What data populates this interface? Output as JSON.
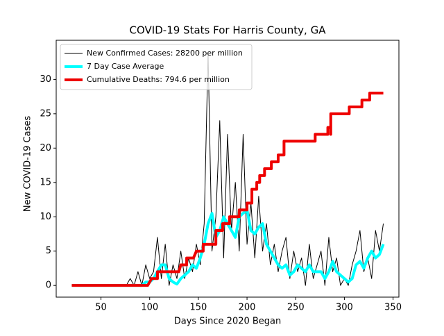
{
  "chart_data": {
    "type": "line",
    "title": "COVID-19 Stats For Harris County, GA",
    "x_label": "Days Since 2020 Began",
    "y_label": "New COVID-19 Cases",
    "xlim": [
      4,
      356
    ],
    "xticks": [
      50,
      100,
      150,
      200,
      250,
      300,
      350
    ],
    "ylim": [
      -1.7,
      35.7
    ],
    "yticks": [
      0,
      5,
      10,
      15,
      20,
      25,
      30
    ],
    "legend": "upper left",
    "series": [
      {
        "name": "New Confirmed Cases: 28200 per million",
        "color": "#000000",
        "width": 1,
        "x": [
          20,
          24,
          28,
          32,
          36,
          40,
          44,
          48,
          52,
          56,
          60,
          64,
          68,
          72,
          76,
          80,
          84,
          88,
          92,
          96,
          100,
          104,
          108,
          112,
          116,
          120,
          124,
          128,
          132,
          136,
          140,
          144,
          148,
          152,
          156,
          160,
          164,
          168,
          172,
          176,
          180,
          184,
          188,
          192,
          196,
          200,
          204,
          208,
          212,
          216,
          220,
          224,
          228,
          232,
          236,
          240,
          244,
          248,
          252,
          256,
          260,
          264,
          268,
          272,
          276,
          280,
          284,
          288,
          292,
          296,
          300,
          304,
          308,
          312,
          316,
          320,
          324,
          328,
          332,
          336,
          340
        ],
        "values": [
          0,
          0,
          0,
          0,
          0,
          0,
          0,
          0,
          0,
          0,
          0,
          0,
          0,
          0,
          0,
          1,
          0,
          2,
          0,
          3,
          1,
          2,
          7,
          1,
          6,
          0,
          3,
          1,
          5,
          1,
          4,
          2,
          6,
          3,
          9,
          34,
          5,
          10,
          24,
          4,
          22,
          8,
          15,
          5,
          22,
          6,
          12,
          4,
          13,
          5,
          9,
          3,
          6,
          2,
          5,
          7,
          1,
          5,
          2,
          4,
          0,
          6,
          1,
          3,
          5,
          0,
          7,
          2,
          4,
          0,
          1,
          0,
          3,
          5,
          8,
          2,
          4,
          1,
          8,
          5,
          9
        ]
      },
      {
        "name": "7 Day Case Average",
        "color": "#00ffff",
        "width": 4,
        "x": [
          20,
          24,
          28,
          32,
          36,
          40,
          44,
          48,
          52,
          56,
          60,
          64,
          68,
          72,
          76,
          80,
          84,
          88,
          92,
          96,
          100,
          104,
          108,
          112,
          116,
          120,
          124,
          128,
          132,
          136,
          140,
          144,
          148,
          152,
          156,
          160,
          164,
          168,
          172,
          176,
          180,
          184,
          188,
          192,
          196,
          200,
          204,
          208,
          212,
          216,
          220,
          224,
          228,
          232,
          236,
          240,
          244,
          248,
          252,
          256,
          260,
          264,
          268,
          272,
          276,
          280,
          284,
          288,
          292,
          296,
          300,
          304,
          308,
          312,
          316,
          320,
          324,
          328,
          332,
          336,
          340
        ],
        "values": [
          0,
          0,
          0,
          0,
          0,
          0,
          0,
          0,
          0,
          0,
          0,
          0,
          0,
          0,
          0,
          0,
          0,
          0,
          0,
          0.5,
          0.5,
          1,
          2,
          3,
          3,
          1,
          0.5,
          0.2,
          1,
          1.5,
          2,
          3,
          2.5,
          4,
          6,
          9,
          10.5,
          7,
          8,
          10,
          9,
          8,
          7,
          10,
          10.5,
          11,
          8,
          7.5,
          8.5,
          9,
          6,
          5,
          4,
          3,
          2.5,
          3,
          1.5,
          2,
          3,
          2.5,
          2,
          3,
          2,
          2,
          2,
          1,
          2,
          3.5,
          2,
          1.5,
          1,
          0.5,
          1,
          3,
          3.5,
          2.5,
          4,
          5,
          4,
          4.5,
          6
        ]
      },
      {
        "name": "Cumulative Deaths: 794.6 per million",
        "color": "#ee0000",
        "width": 4,
        "x": [
          20,
          98,
          102,
          108,
          108,
          130,
          132,
          138,
          138,
          145,
          148,
          155,
          155,
          168,
          168,
          175,
          175,
          182,
          182,
          192,
          192,
          200,
          200,
          205,
          205,
          210,
          210,
          213,
          213,
          218,
          218,
          225,
          225,
          232,
          232,
          238,
          238,
          270,
          270,
          283,
          283,
          286,
          286,
          286,
          305,
          305,
          318,
          318,
          326,
          326,
          340
        ],
        "values": [
          0,
          0,
          1,
          1,
          2,
          2,
          3,
          3,
          4,
          4,
          5,
          5,
          6,
          6,
          8,
          8,
          9,
          9,
          10,
          10,
          11,
          11,
          12,
          12,
          14,
          14,
          15,
          15,
          16,
          16,
          17,
          17,
          18,
          18,
          19,
          19,
          21,
          21,
          22,
          22,
          23,
          23,
          22,
          25,
          25,
          26,
          26,
          27,
          27,
          28,
          28
        ]
      }
    ]
  }
}
